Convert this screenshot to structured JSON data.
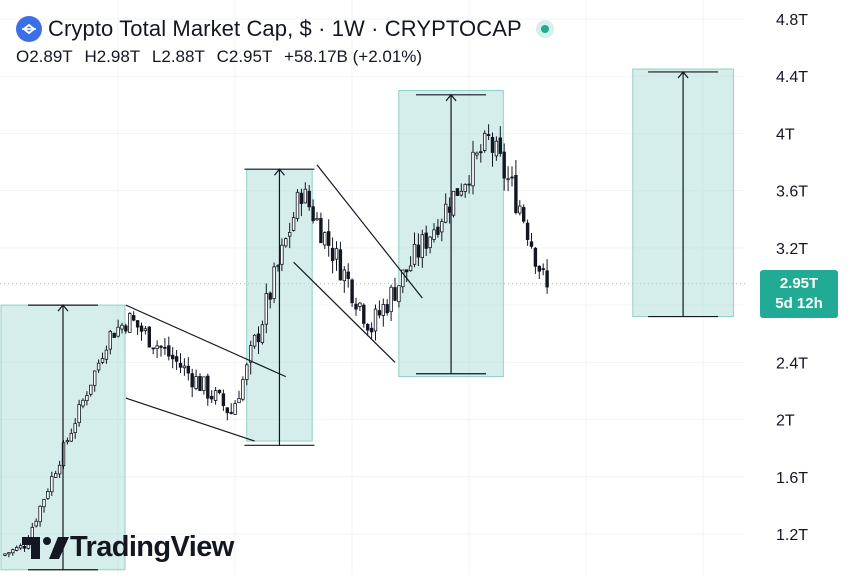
{
  "header": {
    "title": "Crypto Total Market Cap, $ · 1W · CRYPTOCAP",
    "ohlc": {
      "open": "O2.89T",
      "high": "H2.98T",
      "low": "L2.88T",
      "close": "C2.95T",
      "change": "+58.17B (+2.01%)"
    }
  },
  "badge": {
    "price": "2.95T",
    "countdown": "5d 12h"
  },
  "logo": {
    "text": "TradingView"
  },
  "colors": {
    "up": "#131722",
    "down": "#131722",
    "accent": "#22ab94",
    "zone": "#b2dfdb"
  },
  "chart_data": {
    "type": "candlestick",
    "title": "Crypto Total Market Cap, $ · 1W · CRYPTOCAP",
    "xlabel": "",
    "ylabel": "",
    "ylim": [
      0.95,
      4.85
    ],
    "y_ticks": [
      "1.2T",
      "1.6T",
      "2T",
      "2.4T",
      "2.8T",
      "3.2T",
      "3.6T",
      "4T",
      "4.4T",
      "4.8T"
    ],
    "y_tick_values": [
      1.2,
      1.6,
      2.0,
      2.4,
      2.8,
      3.2,
      3.6,
      4.0,
      4.4,
      4.8
    ],
    "grid": true,
    "last_price": 2.95,
    "candle_count": 140,
    "segments": [
      {
        "bars": 6,
        "from": 1.05,
        "to": 1.12,
        "vol": 0.03
      },
      {
        "bars": 22,
        "from": 1.12,
        "to": 2.6,
        "vol": 0.05
      },
      {
        "bars": 5,
        "from": 2.6,
        "to": 2.7,
        "vol": 0.07
      },
      {
        "bars": 26,
        "from": 2.7,
        "to": 2.05,
        "vol": 0.08
      },
      {
        "bars": 4,
        "from": 2.05,
        "to": 2.35,
        "vol": 0.07
      },
      {
        "bars": 14,
        "from": 2.35,
        "to": 3.6,
        "vol": 0.1
      },
      {
        "bars": 18,
        "from": 3.6,
        "to": 2.65,
        "vol": 0.1
      },
      {
        "bars": 16,
        "from": 2.65,
        "to": 3.35,
        "vol": 0.1
      },
      {
        "bars": 14,
        "from": 3.35,
        "to": 3.95,
        "vol": 0.1
      },
      {
        "bars": 8,
        "from": 3.95,
        "to": 3.5,
        "vol": 0.12
      },
      {
        "bars": 7,
        "from": 3.5,
        "to": 2.9,
        "vol": 0.1
      }
    ],
    "zones": [
      {
        "x0": 0,
        "x1": 30,
        "low": 0.95,
        "high": 2.8,
        "arrow_top": 2.8,
        "arrow_bottom": 0.95
      },
      {
        "x0": 63,
        "x1": 78,
        "low": 1.85,
        "high": 3.75,
        "arrow_top": 3.75,
        "arrow_bottom": 1.82
      },
      {
        "x0": 102,
        "x1": 127,
        "low": 2.3,
        "high": 4.3,
        "arrow_top": 4.27,
        "arrow_bottom": 2.32
      },
      {
        "x0": 162,
        "x1": 186,
        "low": 2.72,
        "high": 4.45,
        "arrow_top": 4.43,
        "arrow_bottom": 2.72
      }
    ],
    "channels": [
      {
        "a": [
          31,
          2.8
        ],
        "b": [
          72,
          2.3
        ],
        "c": [
          31,
          2.15
        ],
        "d": [
          64,
          1.85
        ]
      },
      {
        "a": [
          80,
          3.78
        ],
        "b": [
          107,
          2.85
        ],
        "c": [
          74,
          3.1
        ],
        "d": [
          100,
          2.4
        ]
      }
    ]
  }
}
